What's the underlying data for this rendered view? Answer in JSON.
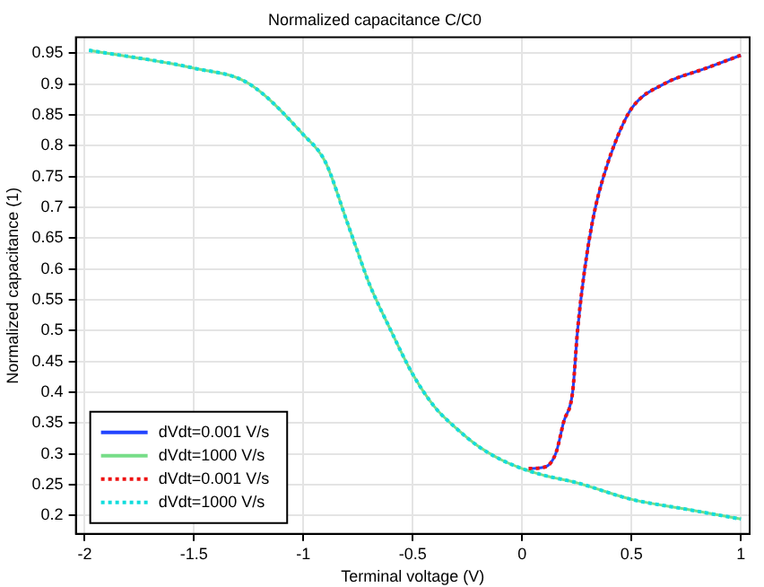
{
  "chart_data": {
    "type": "line",
    "title": "Normalized capacitance C/C0",
    "xlabel": "Terminal voltage (V)",
    "ylabel": "Normalized capacitance (1)",
    "xlim": [
      -2.04,
      1.04
    ],
    "xticks": [
      -2,
      -1.5,
      -1,
      -0.5,
      0,
      0.5,
      1
    ],
    "ylim": [
      0.17,
      0.976
    ],
    "yticks": [
      0.2,
      0.25,
      0.3,
      0.35,
      0.4,
      0.45,
      0.5,
      0.55,
      0.6,
      0.65,
      0.7,
      0.75,
      0.8,
      0.85,
      0.9,
      0.95
    ],
    "grid": true,
    "legend": "bottom left",
    "marker": "none",
    "series": [
      {
        "name": "dVdt=0.001 V/s",
        "color": "#2244ff",
        "line_style": "solid",
        "x": [
          0.03,
          0.108,
          0.155,
          0.19,
          0.231,
          0.253,
          0.285,
          0.326,
          0.367,
          0.434,
          0.503,
          0.652,
          0.842,
          1
        ],
        "values": [
          0.276,
          0.279,
          0.302,
          0.352,
          0.401,
          0.499,
          0.597,
          0.685,
          0.744,
          0.813,
          0.862,
          0.901,
          0.926,
          0.947
        ]
      },
      {
        "name": "dVdt=1000 V/s",
        "color": "#77dd88",
        "line_style": "solid",
        "x": [
          -1.98,
          -1.5,
          -1.25,
          -1,
          -0.9,
          -0.8,
          -0.75,
          -0.7,
          -0.6,
          -0.5,
          -0.4,
          -0.3,
          -0.2,
          -0.1,
          0,
          0.1,
          0.25,
          0.5,
          0.75,
          1
        ],
        "values": [
          0.955,
          0.926,
          0.901,
          0.818,
          0.774,
          0.676,
          0.626,
          0.577,
          0.5,
          0.429,
          0.376,
          0.341,
          0.312,
          0.291,
          0.276,
          0.265,
          0.253,
          0.226,
          0.21,
          0.194
        ]
      },
      {
        "name": "dVdt=0.001 V/s",
        "color": "#ee1111",
        "line_style": "dotted",
        "x": [
          0.03,
          0.108,
          0.155,
          0.19,
          0.231,
          0.253,
          0.285,
          0.326,
          0.367,
          0.434,
          0.503,
          0.652,
          0.842,
          1
        ],
        "values": [
          0.276,
          0.279,
          0.302,
          0.352,
          0.401,
          0.499,
          0.597,
          0.685,
          0.744,
          0.813,
          0.862,
          0.901,
          0.926,
          0.947
        ]
      },
      {
        "name": "dVdt=1000 V/s",
        "color": "#11dddd",
        "line_style": "dotted",
        "x": [
          -1.98,
          -1.5,
          -1.25,
          -1,
          -0.9,
          -0.8,
          -0.75,
          -0.7,
          -0.6,
          -0.5,
          -0.4,
          -0.3,
          -0.2,
          -0.1,
          0,
          0.1,
          0.25,
          0.5,
          0.75,
          1
        ],
        "values": [
          0.955,
          0.926,
          0.901,
          0.818,
          0.774,
          0.676,
          0.626,
          0.577,
          0.5,
          0.429,
          0.376,
          0.341,
          0.312,
          0.291,
          0.276,
          0.265,
          0.253,
          0.226,
          0.21,
          0.194
        ]
      }
    ]
  }
}
